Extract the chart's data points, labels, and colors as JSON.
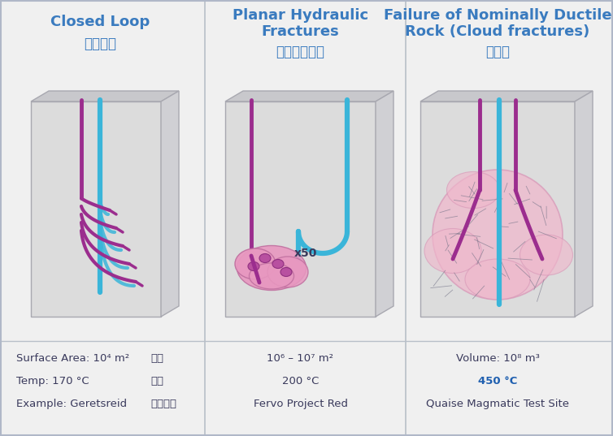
{
  "bg_color": "#f0f0f0",
  "purple": "#9b2d8e",
  "blue": "#3ab5d9",
  "pink_fill": "#f0b8cc",
  "text_dark": "#3a3a5c",
  "text_blue": "#3a7bbf",
  "text_bold_blue": "#2060b0",
  "panel1": {
    "title_en": "Closed Loop",
    "title_zh": "闭环系统",
    "stat1": "Surface Area: 10⁴ m²",
    "stat2": "Temp: 170 °C",
    "stat3": "Example: Geretsreid",
    "stat1_zh": "占地",
    "stat2_zh": "温度",
    "stat3_zh": "项目地点"
  },
  "panel2": {
    "title_en1": "Planar Hydraulic",
    "title_en2": "Fractures",
    "title_zh": "平面水力裂隙",
    "stat1": "10⁶ – 10⁷ m²",
    "stat2": "200 °C",
    "stat3": "Fervo Project Red",
    "x50": "x50"
  },
  "panel3": {
    "title_en1": "Failure of Nominally Ductile",
    "title_en2": "Rock (Cloud fractures)",
    "title_zh": "云裂隙",
    "stat1": "Volume: 10⁸ m³",
    "stat2": "450 °C",
    "stat3": "Quaise Magmatic Test Site"
  }
}
